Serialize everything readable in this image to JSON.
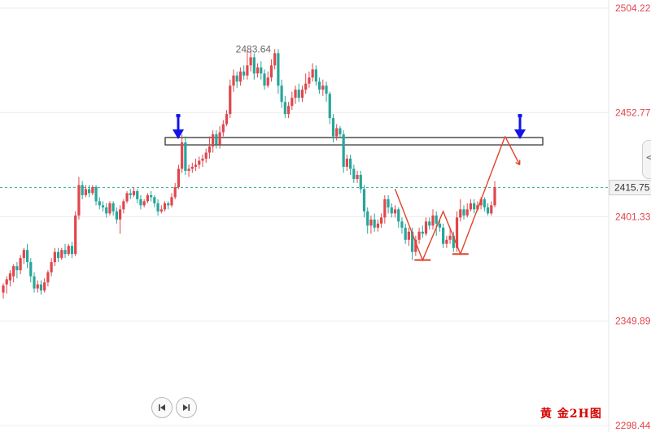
{
  "chart_data": {
    "type": "candlestick",
    "y_ticks": [
      "2504.22",
      "2452.77",
      "2401.33",
      "2349.89",
      "2298.44"
    ],
    "ylim": [
      2298.44,
      2504.22
    ],
    "high_annotation": "2483.64",
    "last_price": "2415.75",
    "resistance_zone": [
      2436.8,
      2440.4
    ],
    "up_color": "#e0464d",
    "down_color": "#26a69a",
    "pattern_color": "#e2432d",
    "arrow_color": "#1414e6",
    "caption": "黄 金2H图",
    "candles": [
      [
        2364.0,
        2367.5,
        2361.0,
        2368.5
      ],
      [
        2368.0,
        2370.5,
        2363.5,
        2372.0
      ],
      [
        2370.0,
        2373.5,
        2367.0,
        2375.0
      ],
      [
        2372.0,
        2377.0,
        2369.0,
        2378.0
      ],
      [
        2377.0,
        2375.0,
        2371.0,
        2379.0
      ],
      [
        2375.0,
        2381.0,
        2373.0,
        2382.5
      ],
      [
        2381.0,
        2385.0,
        2378.0,
        2386.0
      ],
      [
        2385.0,
        2379.0,
        2376.0,
        2388.0
      ],
      [
        2379.0,
        2372.0,
        2369.0,
        2381.0
      ],
      [
        2372.0,
        2366.0,
        2364.0,
        2374.0
      ],
      [
        2366.0,
        2368.0,
        2364.0,
        2370.0
      ],
      [
        2368.0,
        2365.0,
        2363.0,
        2370.0
      ],
      [
        2365.0,
        2369.0,
        2364.0,
        2371.0
      ],
      [
        2369.0,
        2374.0,
        2367.0,
        2375.0
      ],
      [
        2374.0,
        2379.0,
        2372.0,
        2381.0
      ],
      [
        2379.0,
        2384.0,
        2377.0,
        2386.0
      ],
      [
        2384.0,
        2381.0,
        2379.0,
        2386.0
      ],
      [
        2381.0,
        2385.0,
        2380.0,
        2386.0
      ],
      [
        2385.0,
        2383.0,
        2381.0,
        2388.0
      ],
      [
        2383.0,
        2387.0,
        2382.0,
        2388.0
      ],
      [
        2387.0,
        2383.0,
        2381.0,
        2389.0
      ],
      [
        2383.0,
        2402.0,
        2382.0,
        2404.0
      ],
      [
        2402.0,
        2417.0,
        2400.0,
        2421.0
      ],
      [
        2417.0,
        2412.0,
        2410.0,
        2419.0
      ],
      [
        2412.0,
        2415.0,
        2411.0,
        2417.0
      ],
      [
        2415.0,
        2413.0,
        2411.0,
        2417.0
      ],
      [
        2413.0,
        2416.0,
        2412.0,
        2417.0
      ],
      [
        2416.0,
        2409.0,
        2407.0,
        2417.0
      ],
      [
        2409.0,
        2407.0,
        2405.0,
        2411.0
      ],
      [
        2407.0,
        2406.0,
        2404.0,
        2409.0
      ],
      [
        2406.0,
        2403.0,
        2401.0,
        2408.0
      ],
      [
        2403.0,
        2408.0,
        2402.0,
        2409.0
      ],
      [
        2408.0,
        2404.0,
        2402.0,
        2409.0
      ],
      [
        2404.0,
        2400.0,
        2398.0,
        2406.0
      ],
      [
        2400.0,
        2405.0,
        2393.0,
        2407.0
      ],
      [
        2405.0,
        2409.0,
        2403.0,
        2410.0
      ],
      [
        2409.0,
        2413.0,
        2408.0,
        2414.0
      ],
      [
        2413.0,
        2412.0,
        2410.0,
        2415.0
      ],
      [
        2412.0,
        2414.0,
        2411.0,
        2416.0
      ],
      [
        2414.0,
        2410.0,
        2408.0,
        2415.0
      ],
      [
        2410.0,
        2407.0,
        2405.0,
        2412.0
      ],
      [
        2407.0,
        2409.0,
        2406.0,
        2410.0
      ],
      [
        2409.0,
        2412.0,
        2408.0,
        2413.0
      ],
      [
        2412.0,
        2411.0,
        2409.0,
        2414.0
      ],
      [
        2411.0,
        2408.0,
        2406.0,
        2412.0
      ],
      [
        2408.0,
        2404.0,
        2402.0,
        2410.0
      ],
      [
        2404.0,
        2405.0,
        2403.0,
        2407.0
      ],
      [
        2405.0,
        2408.0,
        2404.0,
        2409.0
      ],
      [
        2408.0,
        2407.0,
        2405.0,
        2409.0
      ],
      [
        2407.0,
        2411.0,
        2406.0,
        2413.0
      ],
      [
        2411.0,
        2416.0,
        2410.0,
        2418.0
      ],
      [
        2416.0,
        2425.0,
        2415.0,
        2427.0
      ],
      [
        2425.0,
        2438.0,
        2423.0,
        2442.0
      ],
      [
        2438.0,
        2424.0,
        2422.0,
        2441.0
      ],
      [
        2424.0,
        2425.0,
        2421.0,
        2427.0
      ],
      [
        2425.0,
        2426.0,
        2423.0,
        2428.0
      ],
      [
        2426.0,
        2427.0,
        2424.0,
        2430.0
      ],
      [
        2427.0,
        2429.0,
        2425.0,
        2431.0
      ],
      [
        2429.0,
        2430.0,
        2426.0,
        2432.0
      ],
      [
        2430.0,
        2433.0,
        2428.0,
        2435.0
      ],
      [
        2433.0,
        2436.0,
        2430.0,
        2441.0
      ],
      [
        2436.0,
        2442.0,
        2433.0,
        2444.0
      ],
      [
        2442.0,
        2437.0,
        2435.0,
        2444.0
      ],
      [
        2437.0,
        2443.0,
        2435.0,
        2446.0
      ],
      [
        2443.0,
        2447.0,
        2441.0,
        2449.0
      ],
      [
        2447.0,
        2452.0,
        2446.0,
        2454.0
      ],
      [
        2452.0,
        2466.0,
        2450.0,
        2469.0
      ],
      [
        2466.0,
        2471.0,
        2463.0,
        2474.0
      ],
      [
        2471.0,
        2468.0,
        2465.0,
        2473.0
      ],
      [
        2468.0,
        2473.0,
        2466.0,
        2475.0
      ],
      [
        2473.0,
        2471.0,
        2469.0,
        2476.0
      ],
      [
        2471.0,
        2476.0,
        2469.0,
        2483.0
      ],
      [
        2476.0,
        2480.0,
        2473.0,
        2483.6
      ],
      [
        2480.0,
        2472.0,
        2469.0,
        2482.0
      ],
      [
        2472.0,
        2475.0,
        2470.0,
        2477.0
      ],
      [
        2475.0,
        2472.0,
        2469.0,
        2478.0
      ],
      [
        2472.0,
        2466.0,
        2464.0,
        2474.0
      ],
      [
        2466.0,
        2470.0,
        2465.0,
        2473.0
      ],
      [
        2470.0,
        2476.0,
        2468.0,
        2479.0
      ],
      [
        2476.0,
        2482.0,
        2474.0,
        2484.0
      ],
      [
        2482.0,
        2466.0,
        2462.0,
        2484.0
      ],
      [
        2466.0,
        2458.0,
        2455.0,
        2469.0
      ],
      [
        2458.0,
        2452.0,
        2450.0,
        2461.0
      ],
      [
        2452.0,
        2456.0,
        2450.0,
        2458.0
      ],
      [
        2456.0,
        2460.0,
        2454.0,
        2463.0
      ],
      [
        2460.0,
        2464.0,
        2457.0,
        2466.0
      ],
      [
        2464.0,
        2460.0,
        2458.0,
        2467.0
      ],
      [
        2460.0,
        2464.0,
        2458.0,
        2466.0
      ],
      [
        2464.0,
        2467.0,
        2462.0,
        2472.0
      ],
      [
        2467.0,
        2470.0,
        2465.0,
        2473.0
      ],
      [
        2470.0,
        2474.0,
        2468.0,
        2477.0
      ],
      [
        2474.0,
        2468.0,
        2466.0,
        2476.0
      ],
      [
        2468.0,
        2464.0,
        2462.0,
        2470.0
      ],
      [
        2464.0,
        2466.0,
        2461.0,
        2469.0
      ],
      [
        2466.0,
        2462.0,
        2458.0,
        2468.0
      ],
      [
        2462.0,
        2450.0,
        2447.0,
        2463.0
      ],
      [
        2450.0,
        2441.0,
        2438.0,
        2452.0
      ],
      [
        2441.0,
        2445.0,
        2439.0,
        2447.0
      ],
      [
        2445.0,
        2442.0,
        2440.0,
        2446.0
      ],
      [
        2442.0,
        2426.0,
        2423.0,
        2444.0
      ],
      [
        2426.0,
        2430.0,
        2424.0,
        2432.0
      ],
      [
        2430.0,
        2425.0,
        2422.0,
        2432.0
      ],
      [
        2425.0,
        2420.0,
        2418.0,
        2427.0
      ],
      [
        2420.0,
        2422.0,
        2418.0,
        2424.0
      ],
      [
        2422.0,
        2415.0,
        2413.0,
        2424.0
      ],
      [
        2415.0,
        2404.0,
        2401.0,
        2417.0
      ],
      [
        2404.0,
        2397.0,
        2393.0,
        2406.0
      ],
      [
        2397.0,
        2400.0,
        2393.0,
        2402.0
      ],
      [
        2400.0,
        2396.0,
        2394.0,
        2403.0
      ],
      [
        2396.0,
        2398.0,
        2394.0,
        2400.0
      ],
      [
        2398.0,
        2401.0,
        2396.0,
        2403.0
      ],
      [
        2401.0,
        2410.0,
        2398.0,
        2412.0
      ],
      [
        2410.0,
        2406.0,
        2403.0,
        2412.0
      ],
      [
        2406.0,
        2403.0,
        2401.0,
        2408.0
      ],
      [
        2403.0,
        2405.0,
        2401.0,
        2407.0
      ],
      [
        2405.0,
        2399.0,
        2396.0,
        2406.0
      ],
      [
        2399.0,
        2396.0,
        2393.0,
        2401.0
      ],
      [
        2396.0,
        2390.0,
        2388.0,
        2398.0
      ],
      [
        2390.0,
        2394.0,
        2387.0,
        2396.0
      ],
      [
        2394.0,
        2384.0,
        2380.0,
        2396.0
      ],
      [
        2384.0,
        2390.0,
        2382.0,
        2392.0
      ],
      [
        2390.0,
        2394.0,
        2388.0,
        2396.0
      ],
      [
        2394.0,
        2393.0,
        2391.0,
        2397.0
      ],
      [
        2393.0,
        2399.0,
        2392.0,
        2401.0
      ],
      [
        2399.0,
        2397.0,
        2395.0,
        2401.0
      ],
      [
        2397.0,
        2402.0,
        2395.0,
        2405.0
      ],
      [
        2402.0,
        2398.0,
        2392.0,
        2404.0
      ],
      [
        2398.0,
        2396.0,
        2394.0,
        2400.0
      ],
      [
        2396.0,
        2388.0,
        2386.0,
        2398.0
      ],
      [
        2388.0,
        2390.0,
        2386.0,
        2392.0
      ],
      [
        2390.0,
        2392.0,
        2388.0,
        2396.0
      ],
      [
        2392.0,
        2386.0,
        2384.0,
        2394.0
      ],
      [
        2386.0,
        2401.0,
        2384.0,
        2404.0
      ],
      [
        2401.0,
        2405.0,
        2399.0,
        2410.0
      ],
      [
        2405.0,
        2402.0,
        2400.0,
        2407.0
      ],
      [
        2402.0,
        2405.0,
        2401.0,
        2408.0
      ],
      [
        2405.0,
        2408.0,
        2404.0,
        2410.0
      ],
      [
        2408.0,
        2405.0,
        2403.0,
        2410.0
      ],
      [
        2405.0,
        2407.0,
        2404.0,
        2409.0
      ],
      [
        2407.0,
        2410.0,
        2405.0,
        2411.0
      ],
      [
        2410.0,
        2406.0,
        2404.0,
        2411.0
      ],
      [
        2406.0,
        2403.0,
        2402.0,
        2408.0
      ],
      [
        2403.0,
        2407.0,
        2402.0,
        2409.0
      ],
      [
        2407.0,
        2416.0,
        2406.0,
        2419.0
      ]
    ]
  },
  "controls": {
    "prev_label": "previous",
    "next_label": "next",
    "side_tab_glyph": "<"
  }
}
